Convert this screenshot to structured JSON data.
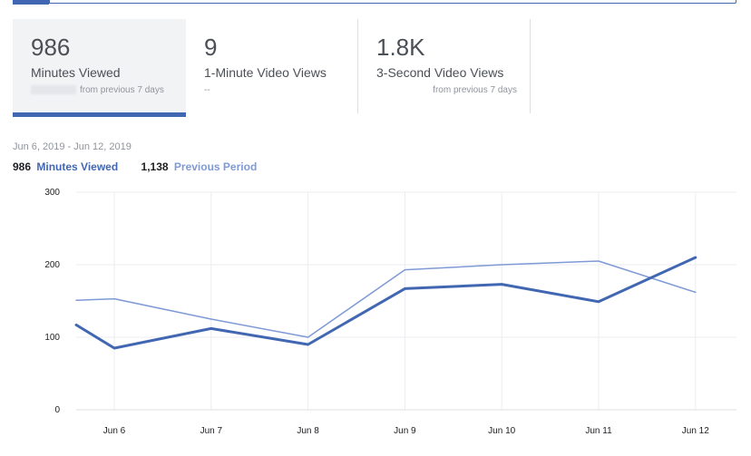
{
  "cards": [
    {
      "value": "986",
      "label": "Minutes Viewed",
      "sub": "from previous 7 days"
    },
    {
      "value": "9",
      "label": "1-Minute Video Views",
      "sub": "--"
    },
    {
      "value": "1.8K",
      "label": "3-Second Video Views",
      "sub": "from previous 7 days"
    }
  ],
  "date_range": "Jun 6, 2019 - Jun 12, 2019",
  "legend": {
    "current_total": "986",
    "current_label": "Minutes Viewed",
    "previous_total": "1,138",
    "previous_label": "Previous Period"
  },
  "colors": {
    "current": "#4267b2",
    "previous": "#7f9ad6",
    "grid": "#ebedf0"
  },
  "chart_data": {
    "type": "line",
    "x": [
      "Jun 6",
      "Jun 7",
      "Jun 8",
      "Jun 9",
      "Jun 10",
      "Jun 11",
      "Jun 12"
    ],
    "yticks": [
      "300",
      "200",
      "100",
      "0"
    ],
    "ylim": [
      0,
      300
    ],
    "grid": true,
    "series": [
      {
        "name": "Minutes Viewed",
        "values": [
          85,
          112,
          90,
          167,
          173,
          149,
          210
        ],
        "start_value": 117
      },
      {
        "name": "Previous Period",
        "values": [
          153,
          125,
          100,
          193,
          200,
          205,
          162
        ],
        "start_value": 151
      }
    ]
  }
}
